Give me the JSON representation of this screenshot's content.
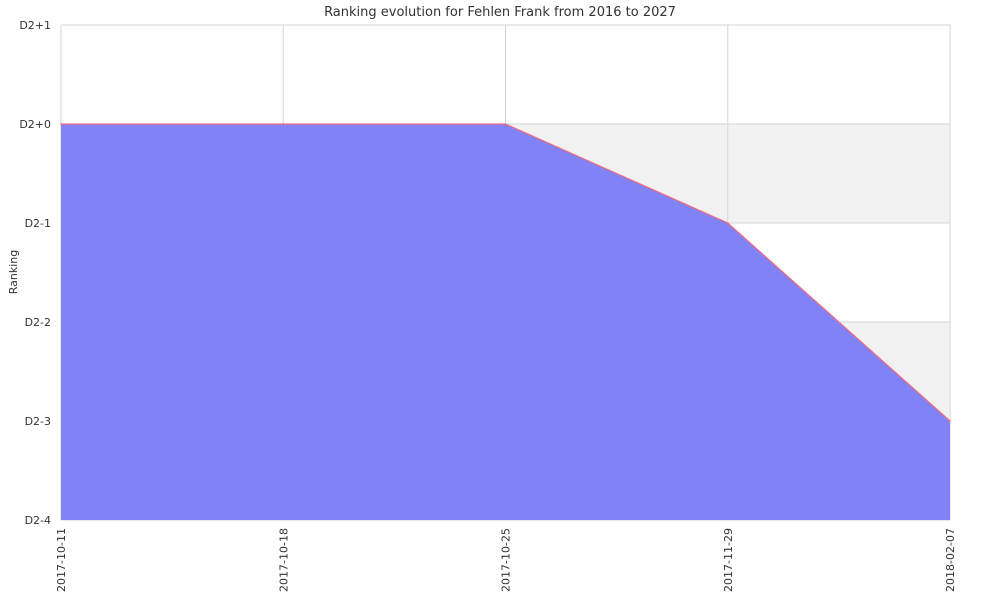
{
  "chart_data": {
    "type": "area",
    "title": "Ranking evolution for Fehlen Frank from 2016 to 2027",
    "xlabel": "",
    "ylabel": "Ranking",
    "x": [
      "2017-10-11",
      "2017-10-18",
      "2017-10-25",
      "2017-11-29",
      "2018-02-07"
    ],
    "y_categories": [
      "D2-4",
      "D2-3",
      "D2-2",
      "D2-1",
      "D2+0",
      "D2+1"
    ],
    "series": [
      {
        "values": [
          "D2+0",
          "D2+0",
          "D2+0",
          "D2-1",
          "D2-3"
        ]
      }
    ],
    "x_spacing": "categorical-equal",
    "grid": true,
    "alternating_bands": true,
    "legend": "none",
    "colors": {
      "fill": "#7b7bf7",
      "line": "#f26d7d",
      "grid": "#d6d6d6",
      "band": "#f2f2f2"
    }
  }
}
